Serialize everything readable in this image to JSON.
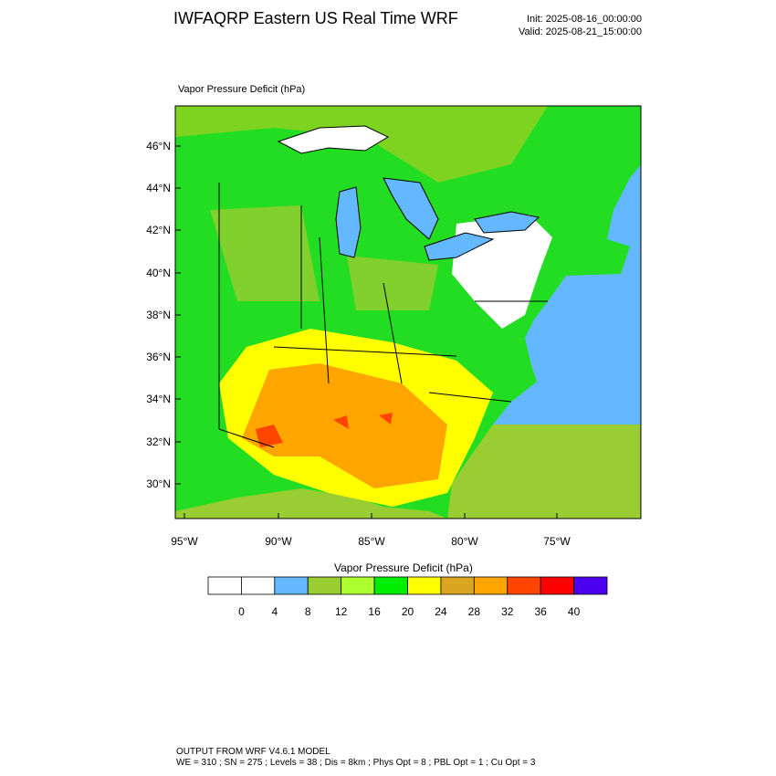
{
  "header": {
    "title": "IWFAQRP Eastern US Real Time WRF",
    "init": "Init: 2025-08-16_00:00:00",
    "valid": "Valid: 2025-08-21_15:00:00"
  },
  "map": {
    "label": "Vapor Pressure Deficit   (hPa)",
    "lat_labels": [
      "46°N",
      "44°N",
      "42°N",
      "40°N",
      "38°N",
      "36°N",
      "34°N",
      "32°N",
      "30°N"
    ],
    "lon_labels": [
      "95°W",
      "90°W",
      "85°W",
      "80°W",
      "75°W"
    ]
  },
  "colorbar": {
    "title": "Vapor Pressure Deficit  (hPa)",
    "levels": [
      0,
      4,
      8,
      12,
      16,
      20,
      24,
      28,
      32,
      36,
      40
    ],
    "colors": [
      "#ffffff",
      "#ffffff",
      "#63b8ff",
      "#9acd32",
      "#adff2f",
      "#00ee00",
      "#ffff00",
      "#daa520",
      "#ffa500",
      "#ff4500",
      "#ff0000",
      "#4b00f0"
    ]
  },
  "footer": {
    "line1": "OUTPUT FROM WRF V4.6.1 MODEL",
    "line2": "WE = 310 ; SN = 275 ; Levels = 38 ; Dis = 8km ; Phys Opt = 8 ; PBL Opt = 1 ; Cu Opt = 3"
  }
}
